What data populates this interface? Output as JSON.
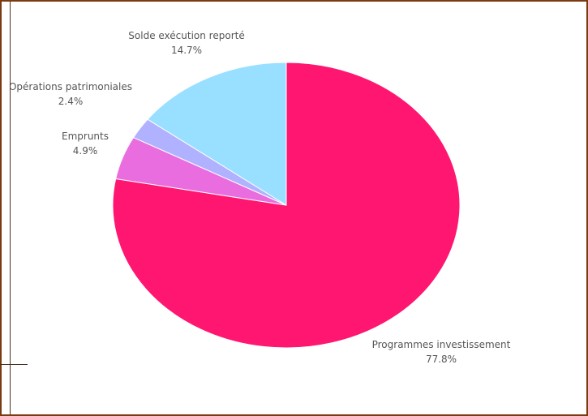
{
  "chart_data": {
    "type": "pie",
    "title": "",
    "slices": [
      {
        "label": "Programmes investissement",
        "value": 77.8,
        "display": "77.8%",
        "color": "#ff1670"
      },
      {
        "label": "Emprunts",
        "value": 4.9,
        "display": "4.9%",
        "color": "#e96ddf"
      },
      {
        "label": "Opérations patrimoniales",
        "value": 2.4,
        "display": "2.4%",
        "color": "#b0b2ff"
      },
      {
        "label": "Solde exécution reporté",
        "value": 14.7,
        "display": "14.7%",
        "color": "#99dfff"
      }
    ],
    "start": "top",
    "direction": "clockwise",
    "legend": "none"
  }
}
